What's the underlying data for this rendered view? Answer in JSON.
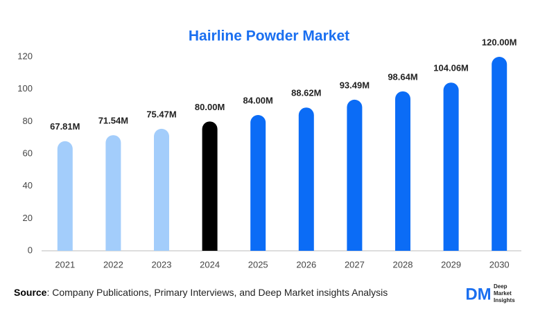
{
  "chart_data": {
    "type": "bar",
    "title": "Hairline Powder Market",
    "categories": [
      "2021",
      "2022",
      "2023",
      "2024",
      "2025",
      "2026",
      "2027",
      "2028",
      "2029",
      "2030"
    ],
    "values": [
      67.81,
      71.54,
      75.47,
      80.0,
      84.0,
      88.62,
      93.49,
      98.64,
      104.06,
      120.0
    ],
    "value_labels": [
      "67.81M",
      "71.54M",
      "75.47M",
      "80.00M",
      "84.00M",
      "88.62M",
      "93.49M",
      "98.64M",
      "104.06M",
      "120.00M"
    ],
    "colors": [
      "#a3cdfb",
      "#a3cdfb",
      "#a3cdfb",
      "#000000",
      "#0b6cf6",
      "#0b6cf6",
      "#0b6cf6",
      "#0b6cf6",
      "#0b6cf6",
      "#0b6cf6"
    ],
    "ylim": [
      0,
      120
    ],
    "yticks": [
      0,
      20,
      40,
      60,
      80,
      100,
      120
    ],
    "grid": false
  },
  "source": {
    "label": "Source",
    "text": ": Company Publications, Primary Interviews, and Deep Market insights Analysis"
  },
  "logo": {
    "mark": "DM",
    "lines": [
      "Deep",
      "Market",
      "Insights"
    ]
  }
}
